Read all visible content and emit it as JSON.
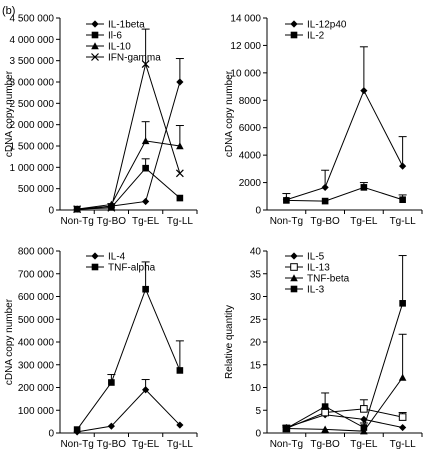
{
  "panel_label": "(b)",
  "chart_data": [
    {
      "type": "line",
      "ylabel": "cDNA copy number",
      "ylim": [
        0,
        4500000
      ],
      "yticks": [
        0,
        500000,
        1000000,
        1500000,
        2000000,
        2500000,
        3000000,
        3500000,
        4000000,
        4500000
      ],
      "ytick_labels": [
        "0",
        "500 000",
        "1 000 000",
        "1 500 000",
        "2 000 000",
        "2 500 000",
        "3 000 000",
        "3 500 000",
        "4 000 000",
        "4 500 000"
      ],
      "categories": [
        "Non-Tg",
        "Tg-BO",
        "Tg-EL",
        "Tg-LL"
      ],
      "legend_position": "top-left",
      "series": [
        {
          "name": "IL-1beta",
          "marker": "diamond",
          "values": [
            20000,
            90000,
            200000,
            3000000
          ],
          "errors": [
            0,
            0,
            0,
            550000
          ]
        },
        {
          "name": "Il-6",
          "marker": "square",
          "values": [
            20000,
            60000,
            980000,
            280000
          ],
          "errors": [
            0,
            0,
            220000,
            0
          ]
        },
        {
          "name": "IL-10",
          "marker": "triangle",
          "values": [
            20000,
            130000,
            1620000,
            1500000
          ],
          "errors": [
            0,
            0,
            450000,
            480000
          ]
        },
        {
          "name": "IFN-gamma",
          "marker": "x",
          "values": [
            20000,
            50000,
            3420000,
            860000
          ],
          "errors": [
            0,
            100000,
            820000,
            0
          ]
        }
      ]
    },
    {
      "type": "line",
      "ylabel": "cDNA copy number",
      "ylim": [
        0,
        14000
      ],
      "yticks": [
        0,
        2000,
        4000,
        6000,
        8000,
        10000,
        12000,
        14000
      ],
      "ytick_labels": [
        "0",
        "2000",
        "4000",
        "6000",
        "8000",
        "10 000",
        "12 000",
        "14 000"
      ],
      "categories": [
        "Non-Tg",
        "Tg-BO",
        "Tg-EL",
        "Tg-LL"
      ],
      "legend_position": "top-left",
      "series": [
        {
          "name": "IL-12p40",
          "marker": "diamond",
          "values": [
            750,
            1650,
            8700,
            3200
          ],
          "errors": [
            450,
            1250,
            3200,
            2150
          ]
        },
        {
          "name": "IL-2",
          "marker": "square",
          "values": [
            700,
            650,
            1650,
            750
          ],
          "errors": [
            0,
            0,
            350,
            350
          ]
        }
      ]
    },
    {
      "type": "line",
      "ylabel": "cDNA copy number",
      "ylim": [
        0,
        800000
      ],
      "yticks": [
        0,
        100000,
        200000,
        300000,
        400000,
        500000,
        600000,
        700000,
        800000
      ],
      "ytick_labels": [
        "0",
        "100 000",
        "200 000",
        "300 000",
        "400 000",
        "500 000",
        "600 000",
        "700 000",
        "800 000"
      ],
      "categories": [
        "Non-Tg",
        "Tg-BO",
        "Tg-EL",
        "Tg-LL"
      ],
      "legend_position": "top-left",
      "series": [
        {
          "name": "IL-4",
          "marker": "diamond",
          "values": [
            5000,
            30000,
            190000,
            35000
          ],
          "errors": [
            0,
            0,
            45000,
            0
          ]
        },
        {
          "name": "TNF-alpha",
          "marker": "square",
          "values": [
            15000,
            222000,
            632000,
            275000
          ],
          "errors": [
            0,
            35000,
            120000,
            130000
          ]
        }
      ]
    },
    {
      "type": "line",
      "ylabel": "Relative quantity",
      "ylim": [
        0,
        40
      ],
      "yticks": [
        0,
        5,
        10,
        15,
        20,
        25,
        30,
        35,
        40
      ],
      "ytick_labels": [
        "0",
        "5",
        "10",
        "15",
        "20",
        "25",
        "30",
        "35",
        "40"
      ],
      "categories": [
        "Non-Tg",
        "Tg-BO",
        "Tg-EL",
        "Tg-LL"
      ],
      "legend_position": "top-left",
      "series": [
        {
          "name": "IL-5",
          "marker": "diamond",
          "values": [
            1.2,
            4.0,
            3.0,
            1.2
          ],
          "errors": [
            0.5,
            0,
            0,
            0
          ]
        },
        {
          "name": "IL-13",
          "marker": "open-square",
          "values": [
            1.0,
            4.5,
            5.3,
            3.5
          ],
          "errors": [
            0.3,
            1.0,
            2.0,
            1.0
          ]
        },
        {
          "name": "TNF-beta",
          "marker": "triangle",
          "values": [
            1.0,
            0.8,
            0.4,
            12.2
          ],
          "errors": [
            0,
            0,
            0,
            9.5
          ]
        },
        {
          "name": "IL-3",
          "marker": "square",
          "values": [
            1.0,
            5.8,
            1.2,
            28.5
          ],
          "errors": [
            0.6,
            3.0,
            1.0,
            10.5
          ]
        }
      ]
    }
  ]
}
